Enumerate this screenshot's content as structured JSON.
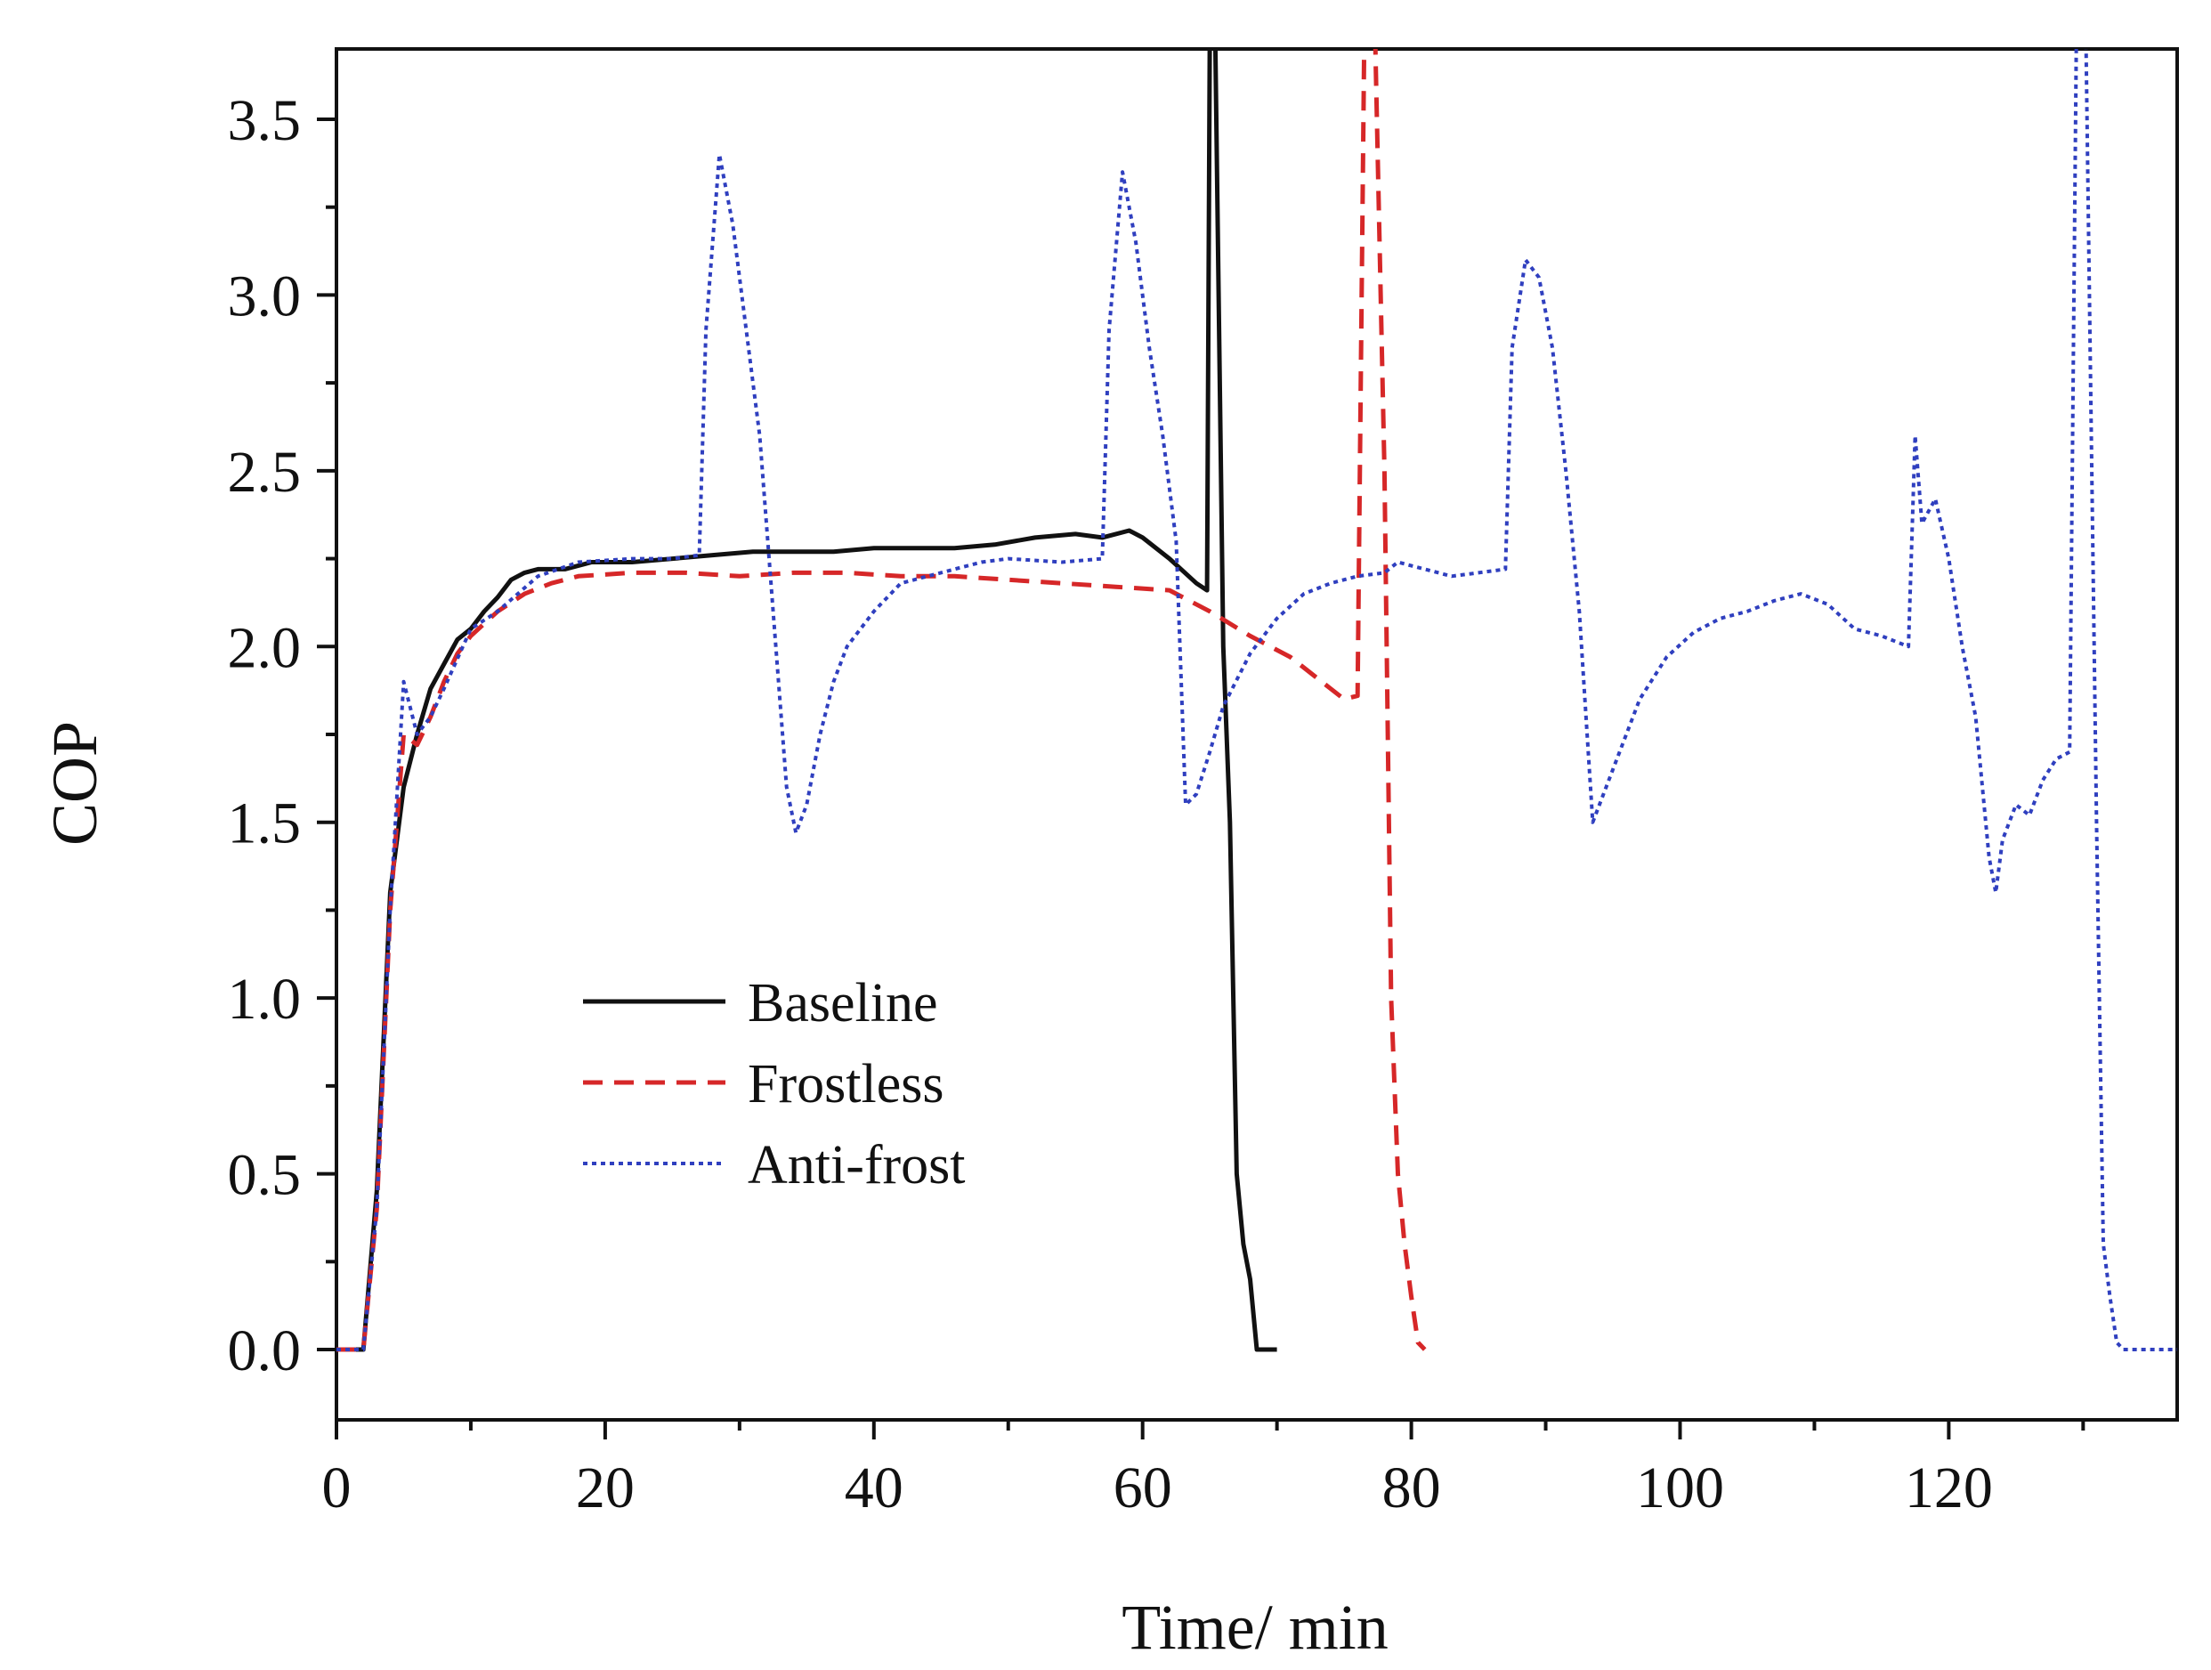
{
  "chart_data": {
    "type": "line",
    "title": "",
    "xlabel": "Time/ min",
    "ylabel": "COP",
    "xlim": [
      0,
      137
    ],
    "ylim": [
      -0.2,
      3.7
    ],
    "x_ticks": [
      0,
      20,
      40,
      60,
      80,
      100,
      120
    ],
    "x_tick_labels": [
      "0",
      "20",
      "40",
      "60",
      "80",
      "100",
      "120"
    ],
    "y_ticks": [
      0.0,
      0.5,
      1.0,
      1.5,
      2.0,
      2.5,
      3.0,
      3.5
    ],
    "y_tick_labels": [
      "0.0",
      "0.5",
      "1.0",
      "1.5",
      "2.0",
      "2.5",
      "3.0",
      "3.5"
    ],
    "grid": false,
    "legend_position": "lower-left",
    "series": [
      {
        "name": "Baseline",
        "color": "#111111",
        "dash": "solid",
        "points": [
          [
            0,
            0
          ],
          [
            2,
            0
          ],
          [
            3,
            0.45
          ],
          [
            4,
            1.3
          ],
          [
            5,
            1.6
          ],
          [
            6,
            1.75
          ],
          [
            7,
            1.88
          ],
          [
            8,
            1.95
          ],
          [
            9,
            2.02
          ],
          [
            10,
            2.05
          ],
          [
            11,
            2.1
          ],
          [
            12,
            2.14
          ],
          [
            13,
            2.19
          ],
          [
            14,
            2.21
          ],
          [
            15,
            2.22
          ],
          [
            17,
            2.22
          ],
          [
            19,
            2.24
          ],
          [
            22,
            2.24
          ],
          [
            25,
            2.25
          ],
          [
            28,
            2.26
          ],
          [
            31,
            2.27
          ],
          [
            34,
            2.27
          ],
          [
            37,
            2.27
          ],
          [
            40,
            2.28
          ],
          [
            43,
            2.28
          ],
          [
            46,
            2.28
          ],
          [
            49,
            2.29
          ],
          [
            52,
            2.31
          ],
          [
            55,
            2.32
          ],
          [
            57,
            2.31
          ],
          [
            59,
            2.33
          ],
          [
            60,
            2.31
          ],
          [
            62,
            2.25
          ],
          [
            64,
            2.18
          ],
          [
            64.8,
            2.16
          ],
          [
            65,
            3.75
          ],
          [
            65.4,
            3.75
          ],
          [
            66,
            2.0
          ],
          [
            66.5,
            1.5
          ],
          [
            67,
            0.5
          ],
          [
            67.5,
            0.3
          ],
          [
            68,
            0.2
          ],
          [
            68.5,
            0
          ],
          [
            70,
            0
          ]
        ]
      },
      {
        "name": "Frostless",
        "color": "#d62728",
        "dash": "dashed",
        "points": [
          [
            0,
            0
          ],
          [
            2,
            0
          ],
          [
            3,
            0.4
          ],
          [
            4,
            1.25
          ],
          [
            5,
            1.75
          ],
          [
            6,
            1.72
          ],
          [
            7,
            1.8
          ],
          [
            8,
            1.9
          ],
          [
            9,
            1.98
          ],
          [
            10,
            2.03
          ],
          [
            12,
            2.1
          ],
          [
            14,
            2.15
          ],
          [
            16,
            2.18
          ],
          [
            18,
            2.2
          ],
          [
            22,
            2.21
          ],
          [
            26,
            2.21
          ],
          [
            30,
            2.2
          ],
          [
            34,
            2.21
          ],
          [
            38,
            2.21
          ],
          [
            42,
            2.2
          ],
          [
            46,
            2.2
          ],
          [
            50,
            2.19
          ],
          [
            54,
            2.18
          ],
          [
            58,
            2.17
          ],
          [
            62,
            2.16
          ],
          [
            65,
            2.1
          ],
          [
            68,
            2.03
          ],
          [
            71,
            1.97
          ],
          [
            74,
            1.88
          ],
          [
            75,
            1.85
          ],
          [
            76,
            1.86
          ],
          [
            76.5,
            3.75
          ],
          [
            77.3,
            3.75
          ],
          [
            78,
            2.5
          ],
          [
            78.5,
            1.0
          ],
          [
            79,
            0.5
          ],
          [
            79.5,
            0.3
          ],
          [
            80,
            0.15
          ],
          [
            80.5,
            0.02
          ],
          [
            81,
            0
          ]
        ]
      },
      {
        "name": "Anti-frost",
        "color": "#2f3fbf",
        "dash": "dotted",
        "points": [
          [
            0,
            0
          ],
          [
            2,
            0
          ],
          [
            3,
            0.4
          ],
          [
            4,
            1.25
          ],
          [
            5,
            1.9
          ],
          [
            6,
            1.75
          ],
          [
            7,
            1.8
          ],
          [
            8,
            1.88
          ],
          [
            10,
            2.05
          ],
          [
            12,
            2.1
          ],
          [
            15,
            2.2
          ],
          [
            18,
            2.24
          ],
          [
            22,
            2.25
          ],
          [
            25,
            2.25
          ],
          [
            27,
            2.26
          ],
          [
            27.5,
            2.9
          ],
          [
            28.5,
            3.4
          ],
          [
            29.5,
            3.2
          ],
          [
            30.5,
            2.9
          ],
          [
            31.5,
            2.6
          ],
          [
            32.5,
            2.1
          ],
          [
            33.5,
            1.6
          ],
          [
            34.2,
            1.47
          ],
          [
            35,
            1.55
          ],
          [
            36,
            1.75
          ],
          [
            37,
            1.9
          ],
          [
            38,
            2.0
          ],
          [
            40,
            2.1
          ],
          [
            42,
            2.18
          ],
          [
            44,
            2.2
          ],
          [
            46,
            2.22
          ],
          [
            48,
            2.24
          ],
          [
            50,
            2.25
          ],
          [
            54,
            2.24
          ],
          [
            57,
            2.25
          ],
          [
            57.5,
            2.9
          ],
          [
            58.5,
            3.35
          ],
          [
            59.5,
            3.15
          ],
          [
            60.5,
            2.85
          ],
          [
            61.5,
            2.6
          ],
          [
            62.5,
            2.3
          ],
          [
            63.2,
            1.55
          ],
          [
            64,
            1.58
          ],
          [
            65,
            1.7
          ],
          [
            66,
            1.83
          ],
          [
            68,
            1.98
          ],
          [
            70,
            2.08
          ],
          [
            72,
            2.15
          ],
          [
            74,
            2.18
          ],
          [
            76,
            2.2
          ],
          [
            78,
            2.21
          ],
          [
            79,
            2.24
          ],
          [
            81,
            2.22
          ],
          [
            83,
            2.2
          ],
          [
            85,
            2.21
          ],
          [
            87,
            2.22
          ],
          [
            87.5,
            2.85
          ],
          [
            88.5,
            3.1
          ],
          [
            89.5,
            3.05
          ],
          [
            90.5,
            2.85
          ],
          [
            91.5,
            2.5
          ],
          [
            92.5,
            2.1
          ],
          [
            93.5,
            1.5
          ],
          [
            95,
            1.65
          ],
          [
            97,
            1.85
          ],
          [
            99,
            1.97
          ],
          [
            101,
            2.04
          ],
          [
            103,
            2.08
          ],
          [
            105,
            2.1
          ],
          [
            107,
            2.13
          ],
          [
            109,
            2.15
          ],
          [
            111,
            2.12
          ],
          [
            113,
            2.05
          ],
          [
            115,
            2.03
          ],
          [
            117,
            2.0
          ],
          [
            117.5,
            2.6
          ],
          [
            118,
            2.35
          ],
          [
            119,
            2.42
          ],
          [
            120,
            2.25
          ],
          [
            121,
            2.0
          ],
          [
            122,
            1.8
          ],
          [
            123,
            1.4
          ],
          [
            123.5,
            1.3
          ],
          [
            124,
            1.45
          ],
          [
            125,
            1.55
          ],
          [
            126,
            1.52
          ],
          [
            127,
            1.62
          ],
          [
            128,
            1.68
          ],
          [
            129,
            1.7
          ],
          [
            129.5,
            3.75
          ],
          [
            130.2,
            3.75
          ],
          [
            131,
            1.5
          ],
          [
            131.5,
            0.3
          ],
          [
            132,
            0.15
          ],
          [
            132.5,
            0.02
          ],
          [
            133,
            0
          ],
          [
            137,
            0
          ]
        ]
      }
    ]
  }
}
